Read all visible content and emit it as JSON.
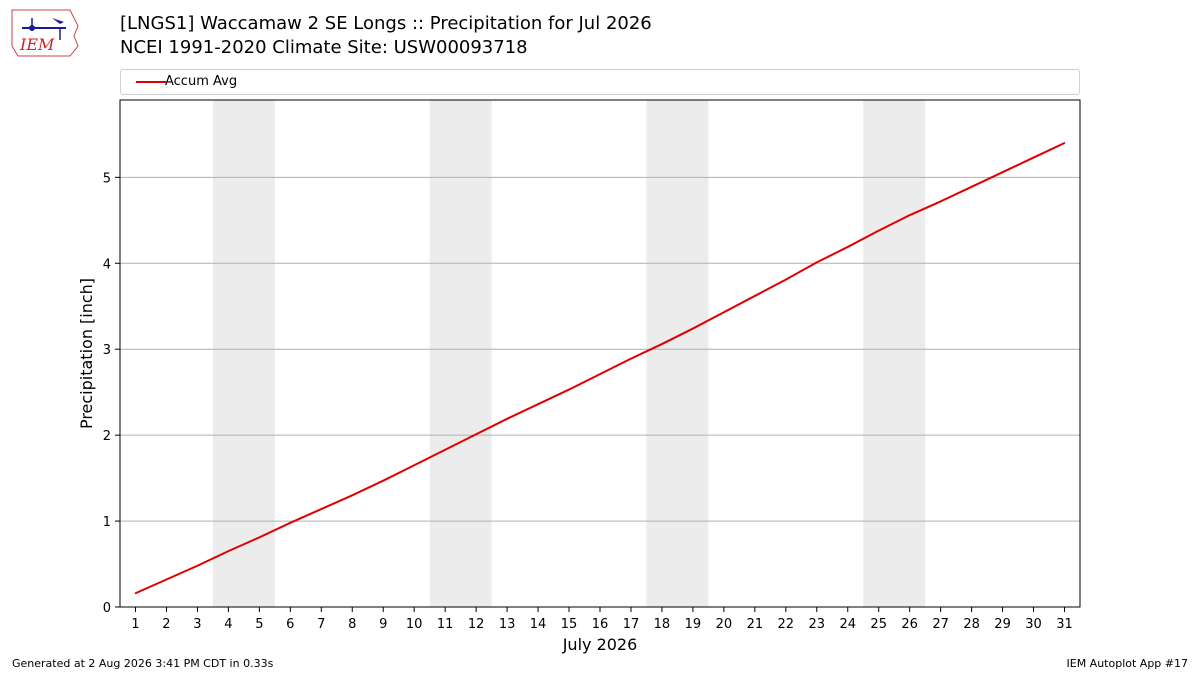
{
  "header": {
    "logo_text": "IEM",
    "title_line1": "[LNGS1] Waccamaw 2 SE Longs :: Precipitation for Jul 2026",
    "title_line2": "NCEI 1991-2020 Climate Site: USW00093718"
  },
  "footer": {
    "left": "Generated at 2 Aug 2026 3:41 PM CDT in 0.33s",
    "right": "IEM Autoplot App #17"
  },
  "colors": {
    "series": "#e00000",
    "weekend_shade": "#ececec",
    "grid": "#b0b0b0"
  },
  "chart_data": {
    "type": "line",
    "xlabel": "July 2026",
    "ylabel": "Precipitation [inch]",
    "xlim": [
      0.5,
      31.5
    ],
    "ylim": [
      0,
      5.9
    ],
    "yticks": [
      0,
      1,
      2,
      3,
      4,
      5
    ],
    "x": [
      1,
      2,
      3,
      4,
      5,
      6,
      7,
      8,
      9,
      10,
      11,
      12,
      13,
      14,
      15,
      16,
      17,
      18,
      19,
      20,
      21,
      22,
      23,
      24,
      25,
      26,
      27,
      28,
      29,
      30,
      31
    ],
    "grid": "horizontal",
    "legend_position": "top",
    "shaded_days": [
      [
        4,
        5
      ],
      [
        11,
        12
      ],
      [
        18,
        19
      ],
      [
        25,
        26
      ]
    ],
    "series": [
      {
        "name": "Accum Avg",
        "values": [
          0.16,
          0.32,
          0.48,
          0.65,
          0.81,
          0.98,
          1.14,
          1.3,
          1.47,
          1.65,
          1.83,
          2.01,
          2.19,
          2.36,
          2.53,
          2.71,
          2.89,
          3.06,
          3.24,
          3.43,
          3.62,
          3.81,
          4.01,
          4.19,
          4.38,
          4.56,
          4.72,
          4.89,
          5.06,
          5.23,
          5.4
        ]
      }
    ]
  }
}
